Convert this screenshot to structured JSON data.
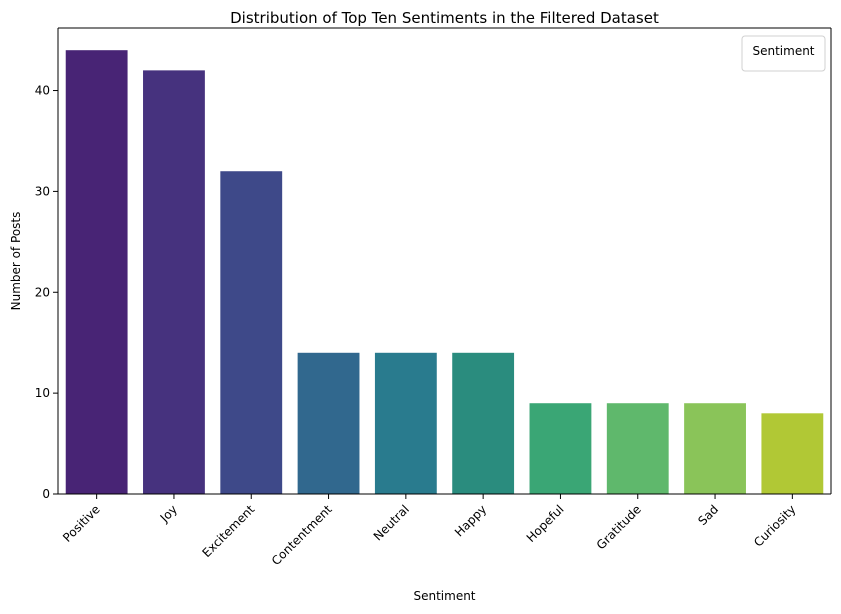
{
  "chart_data": {
    "type": "bar",
    "title": "Distribution of Top Ten Sentiments in the Filtered Dataset",
    "xlabel": "Sentiment",
    "ylabel": "Number of Posts",
    "categories": [
      "Positive",
      "Joy",
      "Excitement",
      "Contentment",
      "Neutral",
      "Happy",
      "Hopeful",
      "Gratitude",
      "Sad",
      "Curiosity"
    ],
    "values": [
      44,
      42,
      32,
      14,
      14,
      14,
      9,
      9,
      9,
      8
    ],
    "colors": [
      "#482475",
      "#46327e",
      "#3e4989",
      "#31688e",
      "#297b8e",
      "#2a8c7e",
      "#3aa675",
      "#5fb86c",
      "#8ac459",
      "#b1c835"
    ],
    "ylim": [
      0,
      46.2
    ],
    "yticks": [
      0,
      10,
      20,
      30,
      40
    ],
    "legend": {
      "title": "Sentiment",
      "position": "top-right"
    },
    "grid": false
  }
}
